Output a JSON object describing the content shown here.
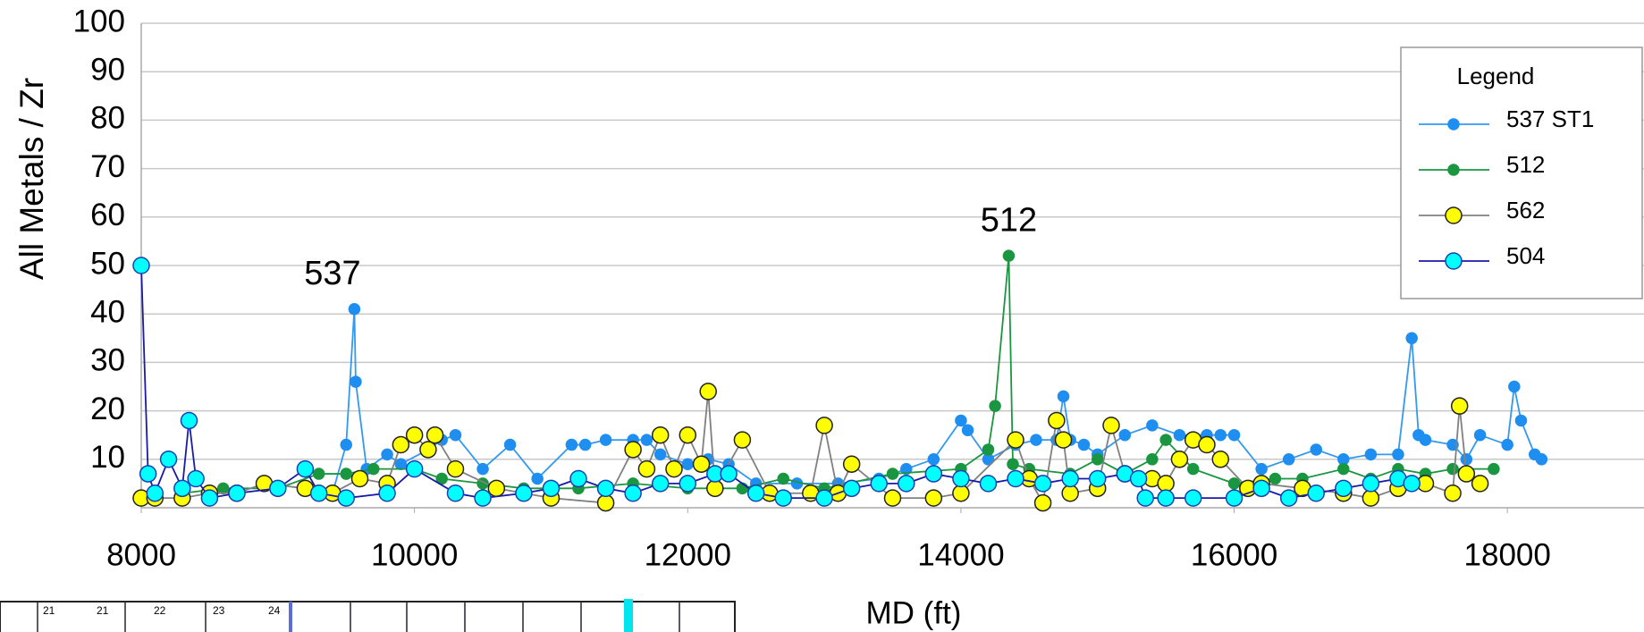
{
  "chart_data": {
    "type": "line",
    "ylabel": "All Metals / Zr",
    "xlabel": "MD (ft)",
    "xlim": [
      8000,
      19000
    ],
    "xticks": [
      8000,
      10000,
      12000,
      14000,
      16000,
      18000
    ],
    "ylim": [
      0,
      100
    ],
    "yticks": [
      10,
      20,
      30,
      40,
      50,
      60,
      70,
      80,
      90,
      100
    ],
    "grid": true,
    "legend_title": "Legend",
    "legend_position": "upper right",
    "annotations": [
      {
        "text": "537",
        "x": 9400,
        "y": 48,
        "color": "#2e75b6"
      },
      {
        "text": "512",
        "x": 14350,
        "y": 59,
        "color": "#1a8040"
      }
    ],
    "series": [
      {
        "name": "537 ST1",
        "color": "#1e8ef0",
        "line_color": "#3399ee",
        "marker_stroke": "#1e8ef0",
        "marker_size": 6,
        "x": [
          9400,
          9500,
          9560,
          9570,
          9650,
          9800,
          9900,
          10100,
          10200,
          10300,
          10500,
          10700,
          10900,
          11150,
          11250,
          11400,
          11600,
          11700,
          11800,
          12000,
          12150,
          12300,
          12500,
          12800,
          13100,
          13400,
          13600,
          13800,
          14000,
          14050,
          14200,
          14400,
          14550,
          14700,
          14750,
          14800,
          14900,
          15000,
          15200,
          15400,
          15600,
          15800,
          15900,
          16000,
          16200,
          16400,
          16600,
          16800,
          17000,
          17200,
          17300,
          17350,
          17400,
          17600,
          17700,
          17800,
          18000,
          18050,
          18100,
          18200,
          18250
        ],
        "values": [
          3,
          13,
          41,
          26,
          8,
          11,
          9,
          12,
          14,
          15,
          8,
          13,
          6,
          13,
          13,
          14,
          14,
          14,
          11,
          9,
          10,
          9,
          5,
          5,
          5,
          6,
          8,
          10,
          18,
          16,
          10,
          13,
          14,
          14,
          23,
          14,
          13,
          11,
          15,
          17,
          15,
          15,
          15,
          15,
          8,
          10,
          12,
          10,
          11,
          11,
          35,
          15,
          14,
          13,
          10,
          15,
          13,
          25,
          18,
          11,
          10
        ]
      },
      {
        "name": "512",
        "color": "#1a9641",
        "line_color": "#1a9641",
        "marker_stroke": "#1a9641",
        "marker_size": 6,
        "x": [
          8300,
          8600,
          9000,
          9300,
          9500,
          9700,
          10000,
          10200,
          10500,
          10800,
          11200,
          11600,
          12000,
          12400,
          12700,
          13000,
          13500,
          14000,
          14200,
          14250,
          14350,
          14380,
          14500,
          14800,
          15000,
          15200,
          15400,
          15500,
          15700,
          16000,
          16300,
          16500,
          16800,
          17000,
          17200,
          17400,
          17600,
          17900
        ],
        "values": [
          3,
          4,
          4,
          7,
          7,
          8,
          8,
          6,
          5,
          4,
          4,
          5,
          4,
          4,
          6,
          4,
          7,
          8,
          12,
          21,
          52,
          9,
          8,
          7,
          10,
          7,
          10,
          14,
          8,
          5,
          6,
          6,
          8,
          6,
          8,
          7,
          8,
          8
        ]
      },
      {
        "name": "562",
        "color": "#ffff00",
        "line_color": "#808080",
        "marker_stroke": "#222222",
        "marker_size": 9,
        "x": [
          8000,
          8100,
          8300,
          8500,
          8700,
          8900,
          9200,
          9400,
          9600,
          9800,
          9900,
          10000,
          10100,
          10150,
          10300,
          10600,
          11000,
          11400,
          11600,
          11700,
          11800,
          11900,
          12000,
          12100,
          12150,
          12200,
          12400,
          12600,
          12900,
          13000,
          13100,
          13200,
          13500,
          13800,
          14000,
          14400,
          14500,
          14600,
          14700,
          14750,
          14800,
          15000,
          15100,
          15200,
          15400,
          15500,
          15600,
          15700,
          15800,
          15900,
          16100,
          16200,
          16500,
          16800,
          17000,
          17200,
          17400,
          17600,
          17650,
          17700,
          17800
        ],
        "values": [
          2,
          2,
          2,
          3,
          3,
          5,
          4,
          3,
          6,
          5,
          13,
          15,
          12,
          15,
          8,
          4,
          2,
          1,
          12,
          8,
          15,
          8,
          15,
          9,
          24,
          4,
          14,
          3,
          3,
          17,
          3,
          9,
          2,
          2,
          3,
          14,
          6,
          1,
          18,
          14,
          3,
          4,
          17,
          7,
          6,
          5,
          10,
          14,
          13,
          10,
          4,
          5,
          4,
          3,
          2,
          4,
          5,
          3,
          21,
          7,
          5
        ]
      },
      {
        "name": "504",
        "color": "#00ffff",
        "line_color": "#1a1aa8",
        "marker_stroke": "#1a3fb0",
        "marker_size": 9,
        "x": [
          8000,
          8050,
          8100,
          8200,
          8300,
          8350,
          8400,
          8500,
          8700,
          9000,
          9200,
          9300,
          9500,
          9800,
          10000,
          10300,
          10500,
          10800,
          11000,
          11200,
          11400,
          11600,
          11800,
          12000,
          12200,
          12300,
          12500,
          12700,
          13000,
          13200,
          13400,
          13600,
          13800,
          14000,
          14200,
          14400,
          14600,
          14800,
          15000,
          15200,
          15300,
          15350,
          15500,
          15700,
          16000,
          16200,
          16400,
          16600,
          16800,
          17000,
          17200,
          17300
        ],
        "values": [
          50,
          7,
          3,
          10,
          4,
          18,
          6,
          2,
          3,
          4,
          8,
          3,
          2,
          3,
          8,
          3,
          2,
          3,
          4,
          6,
          4,
          3,
          5,
          5,
          7,
          7,
          3,
          2,
          2,
          4,
          5,
          5,
          7,
          6,
          5,
          6,
          5,
          6,
          6,
          7,
          6,
          2,
          2,
          2,
          2,
          4,
          2,
          3,
          4,
          5,
          6,
          5
        ]
      }
    ],
    "strip_labels": [
      "21",
      "21",
      "22",
      "23",
      "24"
    ]
  }
}
